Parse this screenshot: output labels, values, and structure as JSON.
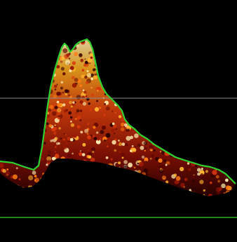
{
  "image": {
    "subject": "doppler-spectral-waveform",
    "colors": {
      "background": "#000000",
      "envelope": "#2fd02f",
      "baseline": "#26b526",
      "reference_line": "#8a8a8a",
      "spectrum_dark": "#3a0000",
      "spectrum_mid": "#c0260a",
      "spectrum_bright": "#ff9a1a",
      "spectrum_peak": "#fff4c0"
    }
  }
}
